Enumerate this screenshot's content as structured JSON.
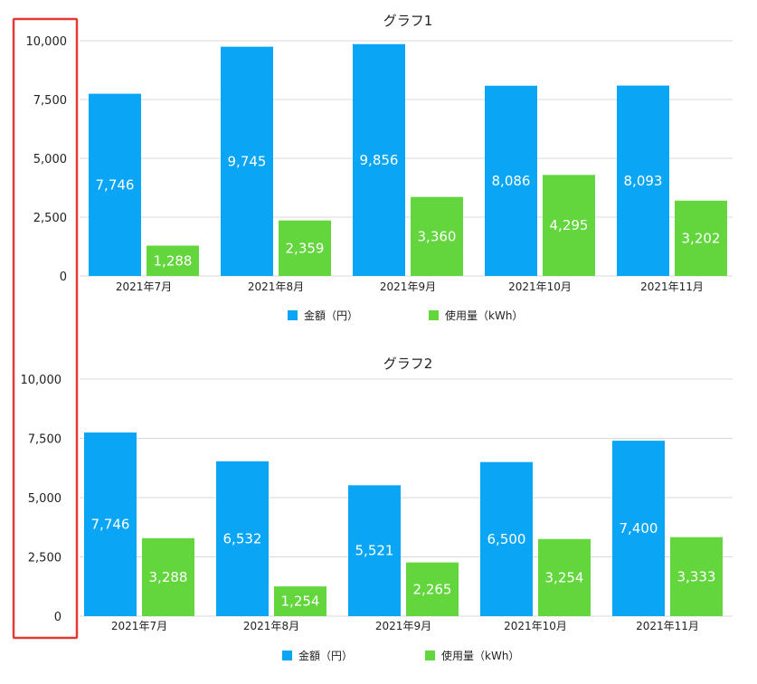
{
  "colors": {
    "blue": "#0aa5f5",
    "green": "#62d63c",
    "highlight": "#e53935",
    "grid": "#d9d9d9"
  },
  "chart_data": [
    {
      "type": "bar",
      "title": "グラフ1",
      "categories": [
        "2021年7月",
        "2021年8月",
        "2021年9月",
        "2021年10月",
        "2021年11月"
      ],
      "series": [
        {
          "name": "金額（円）",
          "values": [
            7746,
            9745,
            9856,
            8086,
            8093
          ]
        },
        {
          "name": "使用量（kWh）",
          "values": [
            1288,
            2359,
            3360,
            4295,
            3202
          ]
        }
      ],
      "yticks": [
        "10,000",
        "7,500",
        "5,000",
        "2,500",
        "0"
      ],
      "ylim": [
        0,
        10000
      ],
      "grid": true,
      "legend": "bottom"
    },
    {
      "type": "bar",
      "title": "グラフ2",
      "categories": [
        "2021年7月",
        "2021年8月",
        "2021年9月",
        "2021年10月",
        "2021年11月"
      ],
      "series": [
        {
          "name": "金額（円）",
          "values": [
            7746,
            6532,
            5521,
            6500,
            7400
          ]
        },
        {
          "name": "使用量（kWh）",
          "values": [
            3288,
            1254,
            2265,
            3254,
            3333
          ]
        }
      ],
      "yticks": [
        "10,000",
        "7,500",
        "5,000",
        "2,500",
        "0"
      ],
      "ylim": [
        0,
        10000
      ],
      "grid": true,
      "legend": "bottom"
    }
  ]
}
